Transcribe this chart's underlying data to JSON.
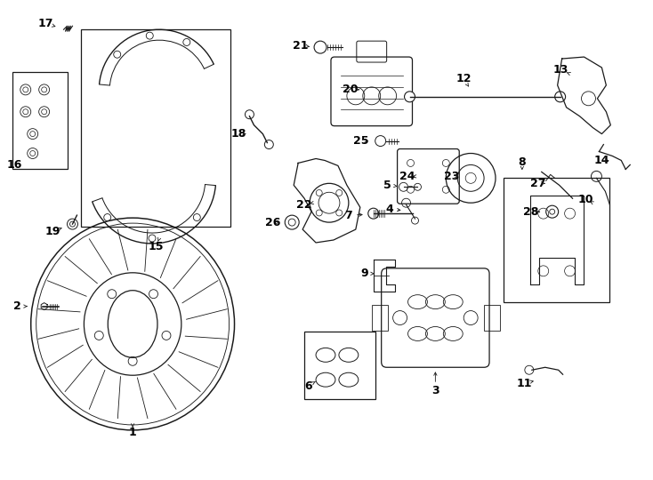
{
  "bg_color": "#ffffff",
  "line_color": "#1a1a1a",
  "label_color": "#000000",
  "fig_width": 7.34,
  "fig_height": 5.4,
  "dpi": 100,
  "lw": 0.9
}
